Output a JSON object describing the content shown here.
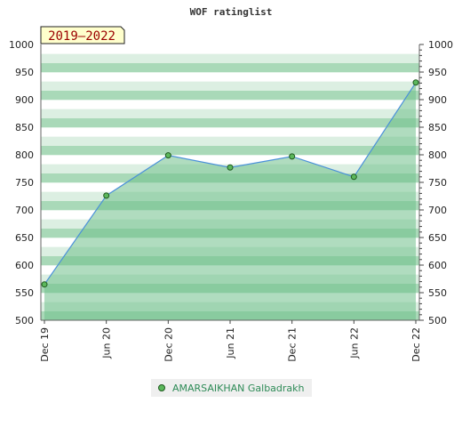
{
  "title": "WOF ratinglist",
  "badge": "2019–2022",
  "legend": {
    "name": "AMARSAIKHAN Galbadrakh"
  },
  "colors": {
    "band_light": "#ffffff",
    "band_mid": "#dcefe2",
    "band_dark": "#a9d9b8",
    "area_fill": "#6fbf8a",
    "line": "#4a90d9",
    "marker_fill": "#5cb85c",
    "marker_stroke": "#1f5a1f",
    "badge_bg": "#ffffcc"
  },
  "chart_data": {
    "type": "area",
    "title": "WOF ratinglist",
    "x": [
      "Dec 19",
      "Jun 20",
      "Dec 20",
      "Jun 21",
      "Dec 21",
      "Jun 22",
      "Dec 22"
    ],
    "series": [
      {
        "name": "AMARSAIKHAN Galbadrakh",
        "values": [
          565,
          726,
          799,
          777,
          797,
          760,
          931
        ]
      }
    ],
    "ylim": [
      500,
      1000
    ],
    "yticks": [
      500,
      550,
      600,
      650,
      700,
      750,
      800,
      850,
      900,
      950,
      1000
    ],
    "xlabel": "",
    "ylabel": "",
    "grid": true,
    "legend_position": "bottom"
  }
}
